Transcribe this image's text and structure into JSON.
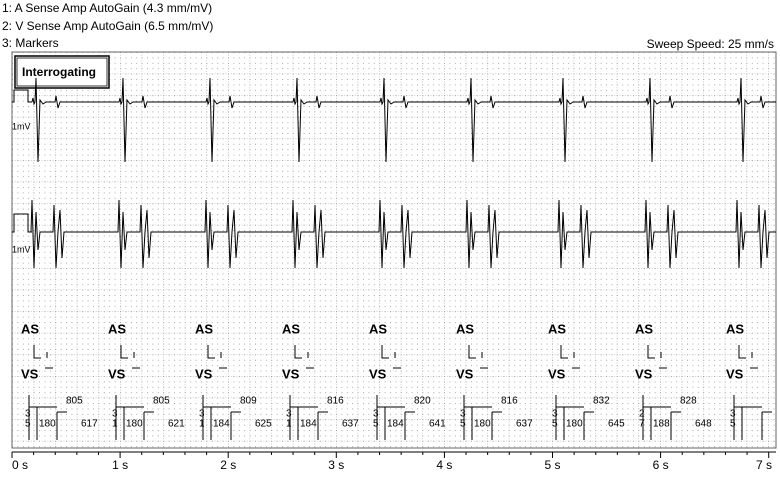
{
  "header": {
    "lines": [
      "1: A Sense Amp AutoGain (4.3 mm/mV)",
      "2: V Sense Amp AutoGain (6.5 mm/mV)",
      "3: Markers"
    ],
    "sweep_speed": "Sweep Speed: 25 mm/s"
  },
  "status": "Interrogating",
  "channels": [
    {
      "label": "1mV"
    },
    {
      "label": "1mV"
    }
  ],
  "beats": [
    {
      "atrial": "AS",
      "ventricular": "VS",
      "aa": "805",
      "av": "180",
      "va": "617",
      "digits": [
        "3",
        "5"
      ]
    },
    {
      "atrial": "AS",
      "ventricular": "VS",
      "aa": "805",
      "av": "180",
      "va": "621",
      "digits": [
        "3",
        "1"
      ]
    },
    {
      "atrial": "AS",
      "ventricular": "VS",
      "aa": "809",
      "av": "184",
      "va": "625",
      "digits": [
        "3",
        "1"
      ]
    },
    {
      "atrial": "AS",
      "ventricular": "VS",
      "aa": "816",
      "av": "184",
      "va": "637",
      "digits": [
        "3",
        "1"
      ]
    },
    {
      "atrial": "AS",
      "ventricular": "VS",
      "aa": "820",
      "av": "184",
      "va": "641",
      "digits": [
        "3",
        "5"
      ]
    },
    {
      "atrial": "AS",
      "ventricular": "VS",
      "aa": "816",
      "av": "180",
      "va": "637",
      "digits": [
        "3",
        "5"
      ]
    },
    {
      "atrial": "AS",
      "ventricular": "VS",
      "aa": "832",
      "av": "180",
      "va": "645",
      "digits": [
        "3",
        "5"
      ]
    },
    {
      "atrial": "AS",
      "ventricular": "VS",
      "aa": "828",
      "av": "188",
      "va": "648",
      "digits": [
        "2",
        "7"
      ]
    },
    {
      "atrial": "AS",
      "ventricular": "VS",
      "digits": [
        "3",
        "5"
      ]
    }
  ],
  "time_axis": [
    "0 s",
    "1 s",
    "2 s",
    "3 s",
    "4 s",
    "5 s",
    "6 s",
    "7 s"
  ]
}
